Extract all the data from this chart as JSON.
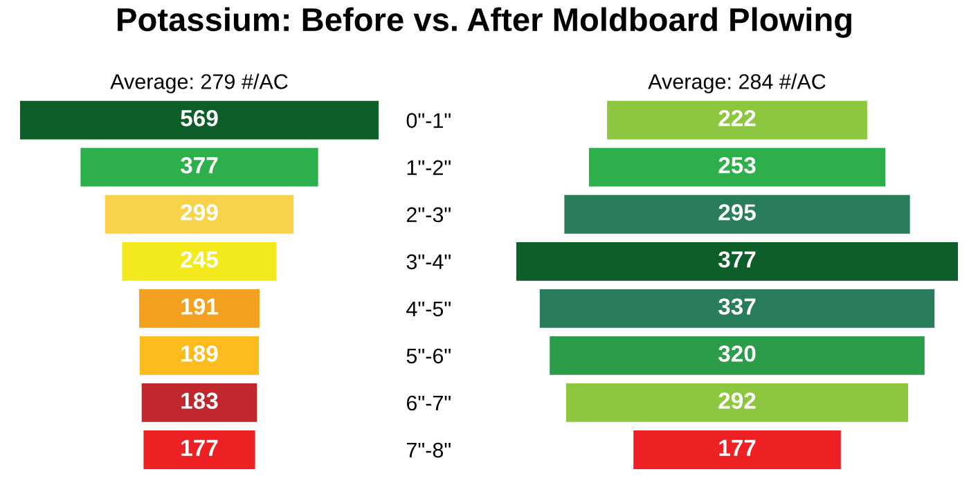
{
  "chart_data": [
    {
      "type": "other",
      "title": "Potassium: Before vs. After Moldboard Plowing",
      "subtitle": "Average: 279 #/AC",
      "categories": [
        null,
        null,
        null,
        null,
        null,
        null,
        null,
        null
      ],
      "values": [
        569,
        377,
        299,
        245,
        191,
        189,
        183,
        177
      ],
      "colors": [
        "#0e5e2a",
        "#2db04b",
        "#f7d24a",
        "#f2ea1c",
        "#f3a020",
        "#fdbb1e",
        "#c0272d",
        "#ed2024"
      ],
      "data_labels": true
    },
    {
      "type": "other",
      "subtitle": "Average: 284 #/AC",
      "categories": [
        "0\"-1\"",
        "1\"-2\"",
        "2\"-3\"",
        "3\"-4\"",
        "4\"-5\"",
        "5\"-6\"",
        "6\"-7\"",
        "7\"-8\""
      ],
      "values": [
        222,
        253,
        295,
        377,
        337,
        320,
        292,
        177
      ],
      "colors": [
        "#8dc63f",
        "#2db04b",
        "#2a7d5a",
        "#0e5e2a",
        "#2a7d5a",
        "#2a9c4a",
        "#8dc63f",
        "#ed2024"
      ],
      "data_labels": true
    }
  ]
}
